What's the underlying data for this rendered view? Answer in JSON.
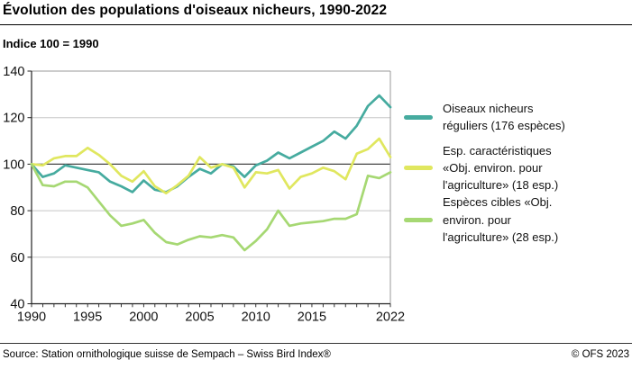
{
  "header": {
    "title": "Évolution des populations d'oiseaux nicheurs, 1990-2022",
    "subtitle": "Indice 100 = 1990"
  },
  "footer": {
    "source": "Source: Station ornithologique suisse de Sempach – Swiss Bird Index®",
    "copyright": "© OFS 2023"
  },
  "colors": {
    "series_teal": "#46AB9F",
    "series_yellow": "#E0E75F",
    "series_green": "#A6D873",
    "grid_minor": "#c5c5c5",
    "grid_baseline": "#444444",
    "axis_dark": "#222222",
    "frame_light": "#999999"
  },
  "chart_data": {
    "type": "line",
    "title": "Évolution des populations d'oiseaux nicheurs, 1990-2022",
    "subtitle_note": "Indice 100 = 1990",
    "xlabel": "",
    "ylabel": "",
    "ylim": [
      40,
      140
    ],
    "yticks": [
      40,
      60,
      80,
      100,
      120,
      140
    ],
    "xticks_labeled": [
      1990,
      1995,
      2000,
      2005,
      2010,
      2015,
      2022
    ],
    "baseline": 100,
    "grid": true,
    "legend_position": "right",
    "x": [
      1990,
      1991,
      1992,
      1993,
      1994,
      1995,
      1996,
      1997,
      1998,
      1999,
      2000,
      2001,
      2002,
      2003,
      2004,
      2005,
      2006,
      2007,
      2008,
      2009,
      2010,
      2011,
      2012,
      2013,
      2014,
      2015,
      2016,
      2017,
      2018,
      2019,
      2020,
      2021,
      2022
    ],
    "series": [
      {
        "name": "Oiseaux nicheurs réguliers (176 espèces)",
        "label_lines": [
          "Oiseaux nicheurs",
          "réguliers (176 espèces)"
        ],
        "color": "#46AB9F",
        "values": [
          100,
          94.5,
          96,
          99.5,
          98.5,
          97.5,
          96.5,
          92.5,
          90.5,
          88,
          93,
          89,
          88,
          90.5,
          94.5,
          98,
          96,
          100,
          99,
          94.5,
          99.5,
          101.5,
          105,
          102.5,
          105,
          107.5,
          110,
          114,
          111,
          116.5,
          125,
          129.5,
          124.5
        ]
      },
      {
        "name": "Esp. caractéristiques «Obj. environ. pour l'agriculture» (18 esp.)",
        "label_lines": [
          "Esp. caractéristiques",
          "«Obj. environ. pour",
          "l'agriculture» (18 esp.)"
        ],
        "color": "#E0E75F",
        "values": [
          100,
          99.5,
          102.5,
          103.5,
          103.5,
          107,
          104,
          100,
          95,
          92.5,
          97,
          90.5,
          87.5,
          91,
          95,
          103,
          98.5,
          100,
          98.5,
          90,
          96.5,
          96,
          97.5,
          89.5,
          94.5,
          96,
          98.5,
          97,
          93.5,
          104.5,
          106.5,
          111,
          103
        ]
      },
      {
        "name": "Espèces cibles «Obj. environ. pour l'agriculture» (28 esp.)",
        "label_lines": [
          "Espèces cibles «Obj.",
          "environ. pour",
          "l'agriculture» (28 esp.)"
        ],
        "color": "#A6D873",
        "values": [
          100,
          91,
          90.5,
          92.5,
          92.5,
          90,
          84,
          78,
          73.5,
          74.5,
          76,
          70.5,
          66.5,
          65.5,
          67.5,
          69,
          68.5,
          69.5,
          68.5,
          63,
          67,
          72,
          80,
          73.5,
          74.5,
          75,
          75.5,
          76.5,
          76.5,
          78.5,
          95,
          94,
          96.5
        ]
      }
    ]
  }
}
